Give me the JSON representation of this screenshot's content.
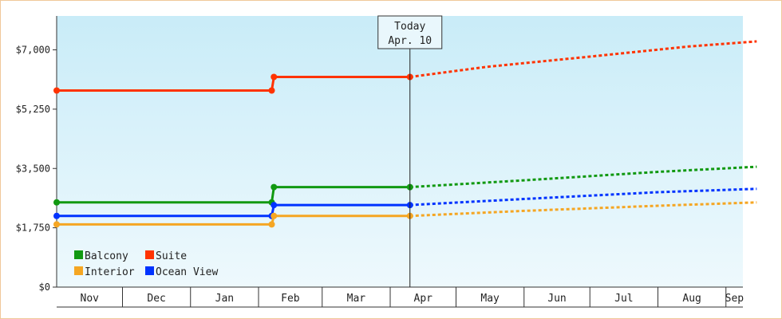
{
  "chart_data": {
    "type": "line",
    "title": "",
    "xlabel": "",
    "ylabel": "",
    "ylim": [
      0,
      8000
    ],
    "y_ticks": [
      0,
      1750,
      3500,
      5250,
      7000
    ],
    "y_tick_labels": [
      "$0",
      "$1,750",
      "$3,500",
      "$5,250",
      "$7,000"
    ],
    "x_ticks": [
      "Nov",
      "Dec",
      "Jan",
      "Feb",
      "Mar",
      "Apr",
      "May",
      "Jun",
      "Jul",
      "Aug",
      "Sep"
    ],
    "grid": false,
    "legend_position": "bottom-left",
    "today_marker": {
      "line1": "Today",
      "line2": "Apr. 10",
      "date": "2024-04-10"
    },
    "series": [
      {
        "name": "Suite",
        "color": "#ff3300",
        "actual": [
          [
            "2023-11-01",
            5800
          ],
          [
            "2024-02-07",
            5800
          ],
          [
            "2024-02-08",
            6200
          ],
          [
            "2024-04-10",
            6200
          ]
        ],
        "projected": [
          [
            "2024-04-10",
            6200
          ],
          [
            "2024-05-15",
            6500
          ],
          [
            "2024-07-01",
            6800
          ],
          [
            "2024-08-15",
            7100
          ],
          [
            "2024-09-15",
            7250
          ]
        ]
      },
      {
        "name": "Balcony",
        "color": "#119911",
        "actual": [
          [
            "2023-11-01",
            2500
          ],
          [
            "2024-02-07",
            2500
          ],
          [
            "2024-02-08",
            2950
          ],
          [
            "2024-04-10",
            2950
          ]
        ],
        "projected": [
          [
            "2024-04-10",
            2950
          ],
          [
            "2024-06-01",
            3150
          ],
          [
            "2024-08-01",
            3400
          ],
          [
            "2024-09-15",
            3550
          ]
        ]
      },
      {
        "name": "Ocean View",
        "color": "#0033ff",
        "actual": [
          [
            "2023-11-01",
            2100
          ],
          [
            "2024-02-07",
            2100
          ],
          [
            "2024-02-08",
            2420
          ],
          [
            "2024-04-10",
            2420
          ]
        ],
        "projected": [
          [
            "2024-04-10",
            2420
          ],
          [
            "2024-06-01",
            2600
          ],
          [
            "2024-08-01",
            2800
          ],
          [
            "2024-09-15",
            2900
          ]
        ]
      },
      {
        "name": "Interior",
        "color": "#f5a623",
        "actual": [
          [
            "2023-11-01",
            1850
          ],
          [
            "2024-02-07",
            1850
          ],
          [
            "2024-02-08",
            2100
          ],
          [
            "2024-04-10",
            2100
          ]
        ],
        "projected": [
          [
            "2024-04-10",
            2100
          ],
          [
            "2024-06-01",
            2250
          ],
          [
            "2024-08-01",
            2400
          ],
          [
            "2024-09-15",
            2500
          ]
        ]
      }
    ],
    "legend": [
      {
        "name": "Balcony",
        "color": "#119911"
      },
      {
        "name": "Suite",
        "color": "#ff3300"
      },
      {
        "name": "Interior",
        "color": "#f5a623"
      },
      {
        "name": "Ocean View",
        "color": "#0033ff"
      }
    ]
  }
}
